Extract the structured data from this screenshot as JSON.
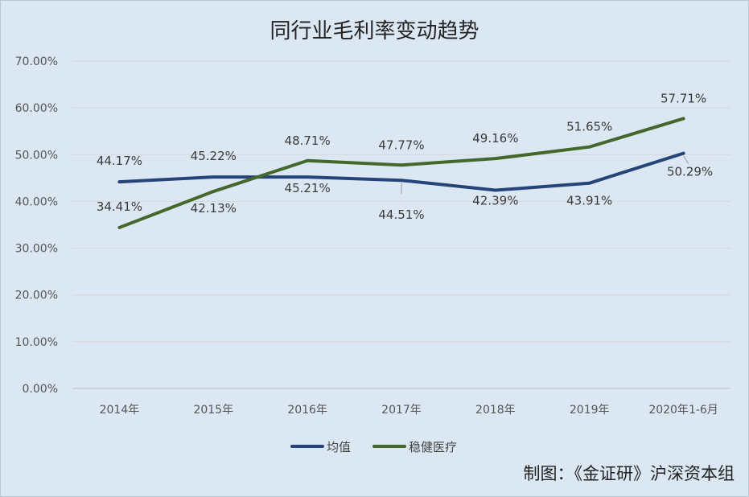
{
  "chart_data": {
    "type": "line",
    "title": "同行业毛利率变动趋势",
    "categories": [
      "2014年",
      "2015年",
      "2016年",
      "2017年",
      "2018年",
      "2019年",
      "2020年1-6月"
    ],
    "ylim": [
      0,
      70
    ],
    "yticks": [
      0,
      10,
      20,
      30,
      40,
      50,
      60,
      70
    ],
    "ytick_labels": [
      "0.00%",
      "10.00%",
      "20.00%",
      "30.00%",
      "40.00%",
      "50.00%",
      "60.00%",
      "70.00%"
    ],
    "grid": true,
    "legend_position": "bottom",
    "series": [
      {
        "name": "均值",
        "color": "#264478",
        "values": [
          44.17,
          45.22,
          45.21,
          44.51,
          42.39,
          43.91,
          50.29
        ],
        "labels": [
          "44.17%",
          "45.22%",
          "45.21%",
          "44.51%",
          "42.39%",
          "43.91%",
          "50.29%"
        ]
      },
      {
        "name": "稳健医疗",
        "color": "#43682b",
        "values": [
          34.41,
          42.13,
          48.71,
          47.77,
          49.16,
          51.65,
          57.71
        ],
        "labels": [
          "34.41%",
          "42.13%",
          "48.71%",
          "47.77%",
          "49.16%",
          "51.65%",
          "57.71%"
        ]
      }
    ]
  },
  "credit": "制图：《金证研》沪深资本组"
}
